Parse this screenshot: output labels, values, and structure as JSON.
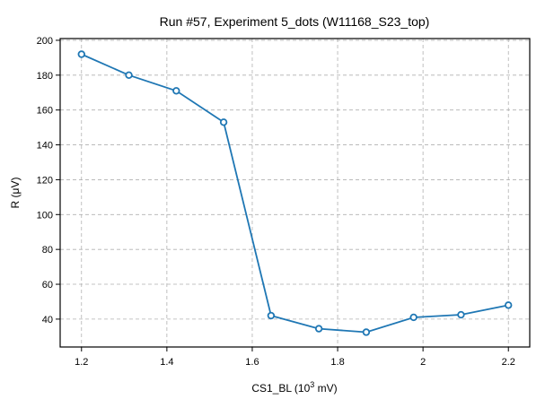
{
  "chart_data": {
    "type": "line",
    "title": "Run #57, Experiment 5_dots (W11168_S23_top)",
    "xlabel_main": "CS1_BL (10",
    "xlabel_sup": "3",
    "xlabel_unit": " mV)",
    "ylabel": "R (μV)",
    "xlim": [
      1.15,
      2.25
    ],
    "ylim": [
      24,
      201
    ],
    "xticks": [
      1.2,
      1.4,
      1.6,
      1.8,
      2,
      2.2
    ],
    "xtick_labels": [
      "1.2",
      "1.4",
      "1.6",
      "1.8",
      "2",
      "2.2"
    ],
    "yticks": [
      40,
      60,
      80,
      100,
      120,
      140,
      160,
      180,
      200
    ],
    "ytick_labels": [
      "40",
      "60",
      "80",
      "100",
      "120",
      "140",
      "160",
      "180",
      "200"
    ],
    "grid": true,
    "series": [
      {
        "color": "#1f77b4",
        "marker": "circle-open",
        "x": [
          1.2,
          1.311,
          1.422,
          1.533,
          1.644,
          1.756,
          1.867,
          1.978,
          2.089,
          2.2
        ],
        "y": [
          192,
          180,
          171,
          153,
          42,
          34.5,
          32.5,
          41,
          42.5,
          48
        ]
      }
    ]
  }
}
